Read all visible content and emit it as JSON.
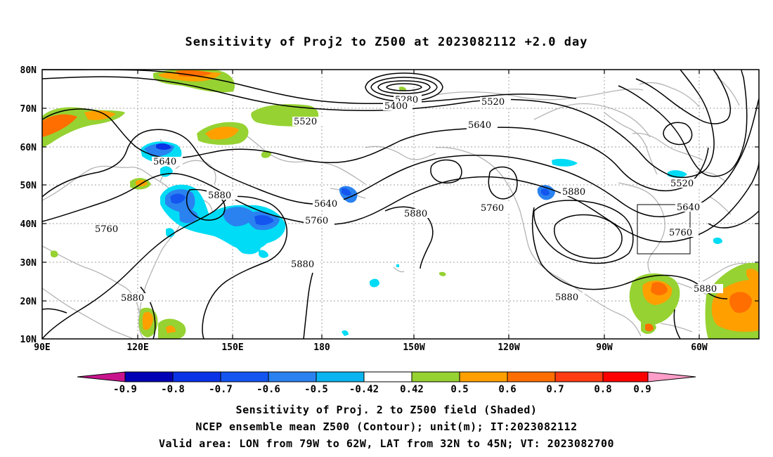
{
  "title": "Sensitivity of Proj2 to Z500 at 2023082112 +2.0 day",
  "lat_labels": [
    "80N",
    "70N",
    "60N",
    "50N",
    "40N",
    "30N",
    "20N",
    "10N"
  ],
  "lon_labels": [
    "90E",
    "120E",
    "150E",
    "180",
    "150W",
    "120W",
    "90W",
    "60W"
  ],
  "contour_labels": [
    "5280",
    "5400",
    "5520",
    "5520",
    "5640",
    "5640",
    "5640",
    "5760",
    "5760",
    "5760",
    "5880",
    "5880",
    "5880",
    "5880",
    "5880",
    "5520",
    "5640",
    "5760",
    "5880"
  ],
  "colorbar": {
    "labels": [
      "-0.9",
      "-0.8",
      "-0.7",
      "-0.6",
      "-0.5",
      "-0.42",
      "0.42",
      "0.5",
      "0.6",
      "0.7",
      "0.8",
      "0.9"
    ],
    "colors": [
      "#0000b4",
      "#0a32e6",
      "#1455f0",
      "#2a82f0",
      "#0ab4f0",
      "#00dcf5",
      "#ffffff",
      "#96d232",
      "#ffa000",
      "#ff6e00",
      "#ff3c14",
      "#ff0000"
    ],
    "under_color": "#c8148c",
    "over_color": "#ff9ec8"
  },
  "footer": {
    "line1": "Sensitivity of Proj. 2 to Z500 field (Shaded)",
    "line2": "NCEP ensemble mean Z500 (Contour); unit(m); IT:2023082112",
    "line3": "Valid area: LON from 79W to 62W, LAT from 32N to 45N; VT: 2023082700"
  }
}
